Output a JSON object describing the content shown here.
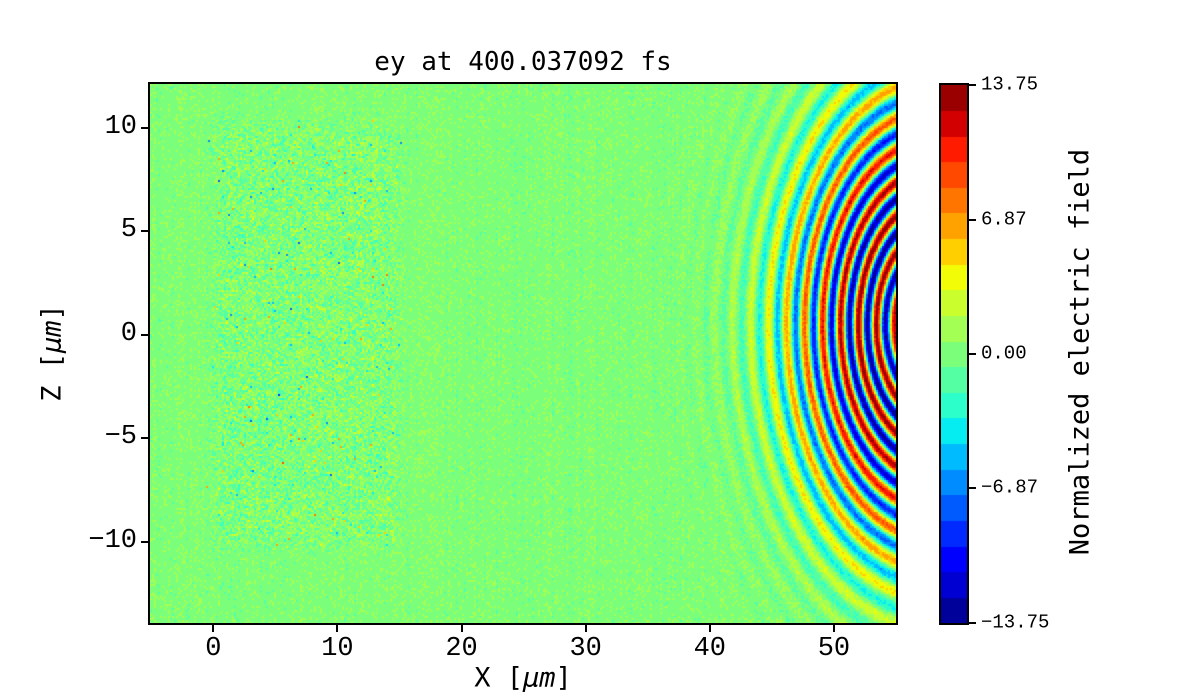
{
  "figure": {
    "background": "#ffffff"
  },
  "chart_data": {
    "type": "heatmap",
    "title": "ey at 400.037092 fs",
    "xlabel": "X [μm]",
    "xlabel_parts": {
      "pre": "X [",
      "italic": "μm",
      "post": "]"
    },
    "ylabel": "Z [μm]",
    "ylabel_parts": {
      "pre": "Z [",
      "italic": "μm",
      "post": "]"
    },
    "xlim": [
      -5.1,
      55.0
    ],
    "ylim": [
      -13.9,
      12.1
    ],
    "xticks": {
      "values": [
        0,
        10,
        20,
        30,
        40,
        50
      ],
      "labels": [
        "0",
        "10",
        "20",
        "30",
        "40",
        "50"
      ]
    },
    "yticks": {
      "values": [
        10,
        5,
        0,
        -5,
        -10
      ],
      "labels": [
        "10",
        "5",
        "0",
        "−5",
        "−10"
      ]
    },
    "colormap": "jet",
    "levels": 21,
    "vmin": -13.75,
    "vmax": 13.75,
    "grid": false,
    "colorbar": {
      "label": "Normalized electric field",
      "ticks": {
        "values": [
          13.75,
          6.87,
          0,
          -6.87,
          -13.75
        ],
        "labels": [
          "13.75",
          "6.87",
          "0.00",
          "−6.87",
          "−13.75"
        ]
      }
    },
    "field_model": {
      "description": "Normalized ey field: weak quantization speckle everywhere, noisy plasma slab at 0<x<15 um / |z|<10 um, and a laser pulse of concentric curved wavefronts converging toward a focus just beyond the right edge near z=0, strongest at x=47-55 um",
      "background_noise": 0.75,
      "noise_bias": 0.12,
      "column_streak_noise": 0.3,
      "plasma_slab": {
        "x_range": [
          0,
          15
        ],
        "z_range": [
          -10.2,
          10.2
        ],
        "x_edge": 0.9,
        "z_edge": 0.7,
        "noise_amp": 2.3,
        "spike_probability": 0.012,
        "spike_amp": 5.0
      },
      "laser_pulse": {
        "center_x": 58,
        "center_z": 0.5,
        "wavelength_um": 1.45,
        "peak_amplitude": 13.6,
        "radius_of_peak": 5.5,
        "radial_width": 7.2,
        "phase": 0.6
      }
    },
    "seed": 123456
  }
}
